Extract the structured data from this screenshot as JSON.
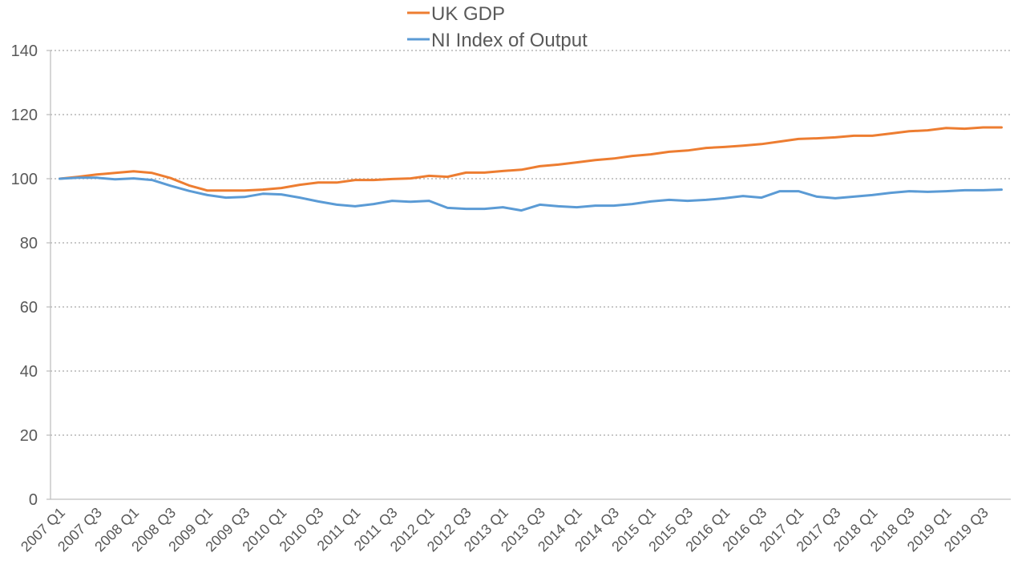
{
  "chart_data": {
    "type": "line",
    "ylim": [
      0,
      140
    ],
    "yticks": [
      0,
      20,
      40,
      60,
      80,
      100,
      120,
      140
    ],
    "grid": "horizontal dotted",
    "legend": "top-center",
    "categories": [
      "2007 Q1",
      "2007 Q2",
      "2007 Q3",
      "2007 Q4",
      "2008 Q1",
      "2008 Q2",
      "2008 Q3",
      "2008 Q4",
      "2009 Q1",
      "2009 Q2",
      "2009 Q3",
      "2009 Q4",
      "2010 Q1",
      "2010 Q2",
      "2010 Q3",
      "2010 Q4",
      "2011 Q1",
      "2011 Q2",
      "2011 Q3",
      "2011 Q4",
      "2012 Q1",
      "2012 Q2",
      "2012 Q3",
      "2012 Q4",
      "2013 Q1",
      "2013 Q2",
      "2013 Q3",
      "2013 Q4",
      "2014 Q1",
      "2014 Q2",
      "2014 Q3",
      "2014 Q4",
      "2015 Q1",
      "2015 Q2",
      "2015 Q3",
      "2015 Q4",
      "2016 Q1",
      "2016 Q2",
      "2016 Q3",
      "2016 Q4",
      "2017 Q1",
      "2017 Q2",
      "2017 Q3",
      "2017 Q4",
      "2018 Q1",
      "2018 Q2",
      "2018 Q3",
      "2018 Q4",
      "2019 Q1",
      "2019 Q2",
      "2019 Q3",
      "2019 Q4"
    ],
    "xtick_labels": [
      "2007 Q1",
      "2007 Q3",
      "2008 Q1",
      "2008 Q3",
      "2009 Q1",
      "2009 Q3",
      "2010 Q1",
      "2010 Q3",
      "2011 Q1",
      "2011 Q3",
      "2012 Q1",
      "2012 Q3",
      "2013 Q1",
      "2013 Q3",
      "2014 Q1",
      "2014 Q3",
      "2015 Q1",
      "2015 Q3",
      "2016 Q1",
      "2016 Q3",
      "2017 Q1",
      "2017 Q3",
      "2018 Q1",
      "2018 Q3",
      "2019 Q1",
      "2019 Q3"
    ],
    "series": [
      {
        "name": "UK GDP",
        "color": "#ED7D31",
        "values": [
          100,
          100.6,
          101.3,
          101.8,
          102.3,
          101.8,
          100.2,
          97.9,
          96.3,
          96.3,
          96.3,
          96.6,
          97.1,
          98.1,
          98.8,
          98.8,
          99.6,
          99.6,
          99.9,
          100.1,
          100.9,
          100.6,
          101.9,
          101.9,
          102.4,
          102.8,
          103.9,
          104.4,
          105.1,
          105.8,
          106.3,
          107.1,
          107.6,
          108.4,
          108.8,
          109.6,
          109.9,
          110.3,
          110.8,
          111.6,
          112.4,
          112.6,
          112.9,
          113.4,
          113.4,
          114.1,
          114.8,
          115.1,
          115.8,
          115.6,
          116.0,
          116.0
        ]
      },
      {
        "name": "NI Index of Output",
        "color": "#5B9BD5",
        "values": [
          100,
          100.3,
          100.3,
          99.8,
          100.1,
          99.6,
          97.8,
          96.2,
          94.9,
          94.1,
          94.3,
          95.3,
          95.1,
          94.1,
          92.9,
          91.9,
          91.4,
          92.1,
          93.1,
          92.8,
          93.1,
          90.9,
          90.6,
          90.6,
          91.1,
          90.1,
          91.9,
          91.4,
          91.1,
          91.6,
          91.6,
          92.1,
          92.9,
          93.4,
          93.1,
          93.4,
          93.9,
          94.6,
          94.1,
          96.1,
          96.1,
          94.4,
          93.9,
          94.4,
          94.9,
          95.6,
          96.1,
          95.9,
          96.1,
          96.4,
          96.4,
          96.6
        ]
      }
    ]
  }
}
